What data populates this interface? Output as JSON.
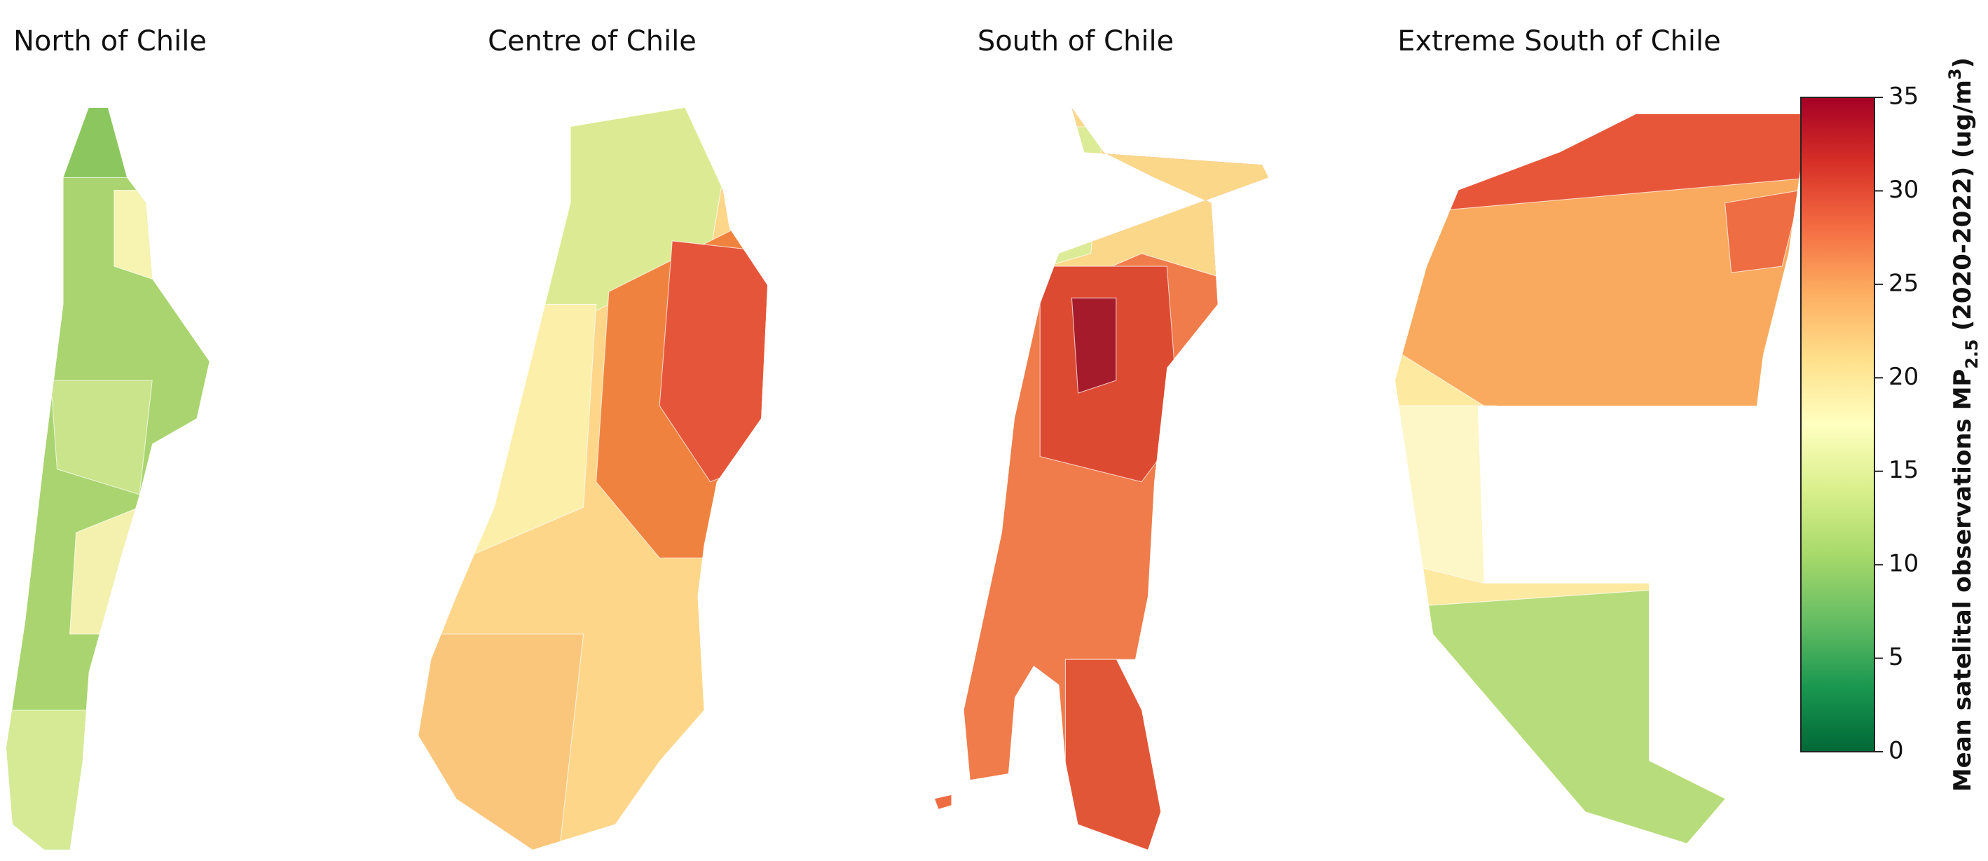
{
  "panels": [
    {
      "title": "North of Chile"
    },
    {
      "title": "Centre of Chile"
    },
    {
      "title": "South of Chile"
    },
    {
      "title": "Extreme South of Chile"
    }
  ],
  "colorbar": {
    "label_parts": [
      "Mean satelital observations MP",
      "2.5",
      " (2020-2022) (ug/m",
      "3",
      ")"
    ],
    "lim": [
      0,
      35
    ],
    "ticks": [
      0,
      5,
      10,
      15,
      20,
      25,
      30,
      35
    ]
  }
}
